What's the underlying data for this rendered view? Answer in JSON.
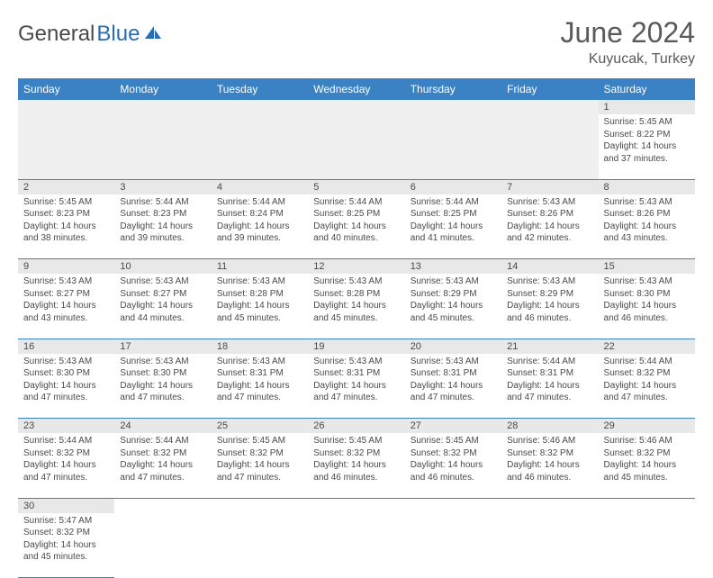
{
  "brand": {
    "part1": "General",
    "part2": "Blue"
  },
  "title": "June 2024",
  "location": "Kuyucak, Turkey",
  "colors": {
    "header_bg": "#3b82c4",
    "header_text": "#ffffff",
    "daynum_bg": "#e8e8e8",
    "border": "#3b82c4",
    "text": "#4a4a4a",
    "brand_blue": "#2a6db5"
  },
  "dayHeaders": [
    "Sunday",
    "Monday",
    "Tuesday",
    "Wednesday",
    "Thursday",
    "Friday",
    "Saturday"
  ],
  "weeks": [
    {
      "nums": [
        "",
        "",
        "",
        "",
        "",
        "",
        "1"
      ],
      "cells": [
        null,
        null,
        null,
        null,
        null,
        null,
        {
          "sunrise": "Sunrise: 5:45 AM",
          "sunset": "Sunset: 8:22 PM",
          "d1": "Daylight: 14 hours",
          "d2": "and 37 minutes."
        }
      ]
    },
    {
      "nums": [
        "2",
        "3",
        "4",
        "5",
        "6",
        "7",
        "8"
      ],
      "cells": [
        {
          "sunrise": "Sunrise: 5:45 AM",
          "sunset": "Sunset: 8:23 PM",
          "d1": "Daylight: 14 hours",
          "d2": "and 38 minutes."
        },
        {
          "sunrise": "Sunrise: 5:44 AM",
          "sunset": "Sunset: 8:23 PM",
          "d1": "Daylight: 14 hours",
          "d2": "and 39 minutes."
        },
        {
          "sunrise": "Sunrise: 5:44 AM",
          "sunset": "Sunset: 8:24 PM",
          "d1": "Daylight: 14 hours",
          "d2": "and 39 minutes."
        },
        {
          "sunrise": "Sunrise: 5:44 AM",
          "sunset": "Sunset: 8:25 PM",
          "d1": "Daylight: 14 hours",
          "d2": "and 40 minutes."
        },
        {
          "sunrise": "Sunrise: 5:44 AM",
          "sunset": "Sunset: 8:25 PM",
          "d1": "Daylight: 14 hours",
          "d2": "and 41 minutes."
        },
        {
          "sunrise": "Sunrise: 5:43 AM",
          "sunset": "Sunset: 8:26 PM",
          "d1": "Daylight: 14 hours",
          "d2": "and 42 minutes."
        },
        {
          "sunrise": "Sunrise: 5:43 AM",
          "sunset": "Sunset: 8:26 PM",
          "d1": "Daylight: 14 hours",
          "d2": "and 43 minutes."
        }
      ]
    },
    {
      "nums": [
        "9",
        "10",
        "11",
        "12",
        "13",
        "14",
        "15"
      ],
      "cells": [
        {
          "sunrise": "Sunrise: 5:43 AM",
          "sunset": "Sunset: 8:27 PM",
          "d1": "Daylight: 14 hours",
          "d2": "and 43 minutes."
        },
        {
          "sunrise": "Sunrise: 5:43 AM",
          "sunset": "Sunset: 8:27 PM",
          "d1": "Daylight: 14 hours",
          "d2": "and 44 minutes."
        },
        {
          "sunrise": "Sunrise: 5:43 AM",
          "sunset": "Sunset: 8:28 PM",
          "d1": "Daylight: 14 hours",
          "d2": "and 45 minutes."
        },
        {
          "sunrise": "Sunrise: 5:43 AM",
          "sunset": "Sunset: 8:28 PM",
          "d1": "Daylight: 14 hours",
          "d2": "and 45 minutes."
        },
        {
          "sunrise": "Sunrise: 5:43 AM",
          "sunset": "Sunset: 8:29 PM",
          "d1": "Daylight: 14 hours",
          "d2": "and 45 minutes."
        },
        {
          "sunrise": "Sunrise: 5:43 AM",
          "sunset": "Sunset: 8:29 PM",
          "d1": "Daylight: 14 hours",
          "d2": "and 46 minutes."
        },
        {
          "sunrise": "Sunrise: 5:43 AM",
          "sunset": "Sunset: 8:30 PM",
          "d1": "Daylight: 14 hours",
          "d2": "and 46 minutes."
        }
      ]
    },
    {
      "nums": [
        "16",
        "17",
        "18",
        "19",
        "20",
        "21",
        "22"
      ],
      "cells": [
        {
          "sunrise": "Sunrise: 5:43 AM",
          "sunset": "Sunset: 8:30 PM",
          "d1": "Daylight: 14 hours",
          "d2": "and 47 minutes."
        },
        {
          "sunrise": "Sunrise: 5:43 AM",
          "sunset": "Sunset: 8:30 PM",
          "d1": "Daylight: 14 hours",
          "d2": "and 47 minutes."
        },
        {
          "sunrise": "Sunrise: 5:43 AM",
          "sunset": "Sunset: 8:31 PM",
          "d1": "Daylight: 14 hours",
          "d2": "and 47 minutes."
        },
        {
          "sunrise": "Sunrise: 5:43 AM",
          "sunset": "Sunset: 8:31 PM",
          "d1": "Daylight: 14 hours",
          "d2": "and 47 minutes."
        },
        {
          "sunrise": "Sunrise: 5:43 AM",
          "sunset": "Sunset: 8:31 PM",
          "d1": "Daylight: 14 hours",
          "d2": "and 47 minutes."
        },
        {
          "sunrise": "Sunrise: 5:44 AM",
          "sunset": "Sunset: 8:31 PM",
          "d1": "Daylight: 14 hours",
          "d2": "and 47 minutes."
        },
        {
          "sunrise": "Sunrise: 5:44 AM",
          "sunset": "Sunset: 8:32 PM",
          "d1": "Daylight: 14 hours",
          "d2": "and 47 minutes."
        }
      ]
    },
    {
      "nums": [
        "23",
        "24",
        "25",
        "26",
        "27",
        "28",
        "29"
      ],
      "cells": [
        {
          "sunrise": "Sunrise: 5:44 AM",
          "sunset": "Sunset: 8:32 PM",
          "d1": "Daylight: 14 hours",
          "d2": "and 47 minutes."
        },
        {
          "sunrise": "Sunrise: 5:44 AM",
          "sunset": "Sunset: 8:32 PM",
          "d1": "Daylight: 14 hours",
          "d2": "and 47 minutes."
        },
        {
          "sunrise": "Sunrise: 5:45 AM",
          "sunset": "Sunset: 8:32 PM",
          "d1": "Daylight: 14 hours",
          "d2": "and 47 minutes."
        },
        {
          "sunrise": "Sunrise: 5:45 AM",
          "sunset": "Sunset: 8:32 PM",
          "d1": "Daylight: 14 hours",
          "d2": "and 46 minutes."
        },
        {
          "sunrise": "Sunrise: 5:45 AM",
          "sunset": "Sunset: 8:32 PM",
          "d1": "Daylight: 14 hours",
          "d2": "and 46 minutes."
        },
        {
          "sunrise": "Sunrise: 5:46 AM",
          "sunset": "Sunset: 8:32 PM",
          "d1": "Daylight: 14 hours",
          "d2": "and 46 minutes."
        },
        {
          "sunrise": "Sunrise: 5:46 AM",
          "sunset": "Sunset: 8:32 PM",
          "d1": "Daylight: 14 hours",
          "d2": "and 45 minutes."
        }
      ]
    },
    {
      "nums": [
        "30",
        "",
        "",
        "",
        "",
        "",
        ""
      ],
      "cells": [
        {
          "sunrise": "Sunrise: 5:47 AM",
          "sunset": "Sunset: 8:32 PM",
          "d1": "Daylight: 14 hours",
          "d2": "and 45 minutes."
        },
        null,
        null,
        null,
        null,
        null,
        null
      ]
    }
  ]
}
